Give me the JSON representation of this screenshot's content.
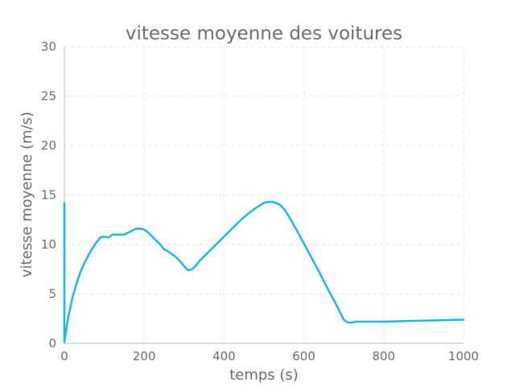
{
  "chart_data": {
    "type": "line",
    "title": "vitesse moyenne des voitures",
    "xlabel": "temps (s)",
    "ylabel": "vitesse moyenne (m/s)",
    "xlim": [
      0,
      1000
    ],
    "ylim": [
      0,
      30
    ],
    "xticks": [
      0,
      200,
      400,
      600,
      800,
      1000
    ],
    "yticks": [
      0,
      5,
      10,
      15,
      20,
      25,
      30
    ],
    "grid": true,
    "line_color": "#1ab8ee",
    "series": [
      {
        "x": [
          0,
          0,
          0,
          5,
          10,
          20,
          30,
          40,
          50,
          60,
          70,
          80,
          90,
          100,
          110,
          120,
          130,
          140,
          150,
          160,
          170,
          180,
          190,
          200,
          210,
          220,
          230,
          240,
          250,
          260,
          270,
          280,
          290,
          300,
          310,
          320,
          330,
          340,
          360,
          380,
          400,
          420,
          440,
          460,
          480,
          500,
          510,
          520,
          530,
          540,
          550,
          560,
          580,
          600,
          620,
          640,
          660,
          680,
          700,
          710,
          720,
          730,
          800,
          900,
          1000
        ],
        "y": [
          14.2,
          0.6,
          0.1,
          1.5,
          2.7,
          4.6,
          6.0,
          7.2,
          8.1,
          8.9,
          9.6,
          10.2,
          10.7,
          10.8,
          10.7,
          11.0,
          11.0,
          11.0,
          11.0,
          11.2,
          11.4,
          11.6,
          11.6,
          11.5,
          11.2,
          10.8,
          10.4,
          10.0,
          9.5,
          9.3,
          9.0,
          8.7,
          8.3,
          7.8,
          7.4,
          7.5,
          7.9,
          8.4,
          9.2,
          10.0,
          10.8,
          11.6,
          12.4,
          13.1,
          13.7,
          14.2,
          14.3,
          14.3,
          14.2,
          14.0,
          13.6,
          13.0,
          11.6,
          10.1,
          8.6,
          7.1,
          5.5,
          4.0,
          2.4,
          2.1,
          2.1,
          2.2,
          2.2,
          2.3,
          2.4
        ]
      }
    ]
  }
}
